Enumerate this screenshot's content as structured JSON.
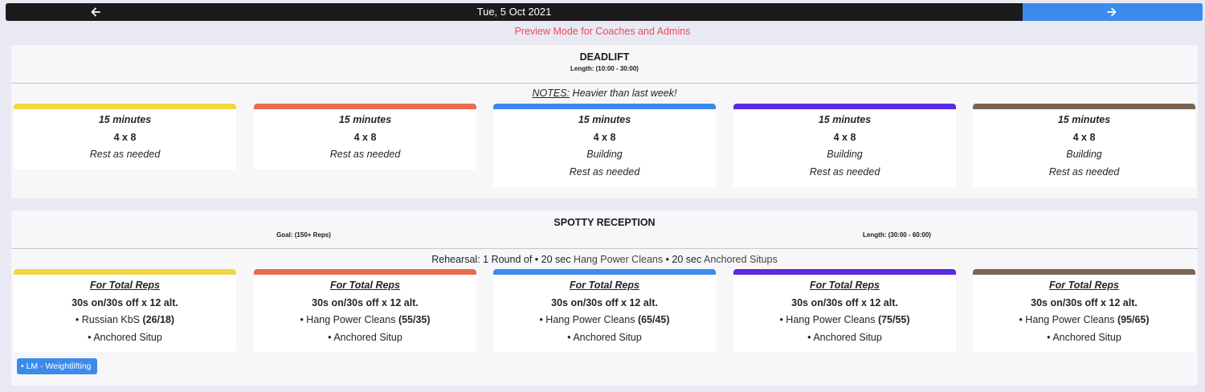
{
  "nav": {
    "date": "Tue, 5 Oct 2021",
    "prev_icon": "arrow-left-icon",
    "next_icon": "arrow-right-icon",
    "next_color": "#3b8bed"
  },
  "preview_text": "Preview Mode for Coaches and Admins",
  "colors": [
    "#f5d547",
    "#ec6a4e",
    "#3b8bed",
    "#5b2ae0",
    "#7a6554"
  ],
  "deadlift": {
    "title": "DEADLIFT",
    "length": "Length: (10:00 - 30:00)",
    "notes_label": "NOTES:",
    "notes_text": " Heavier than last week!",
    "boxes": [
      {
        "time": "15 minutes",
        "sets": "4 x 8",
        "l3": "Rest as needed",
        "l4": ""
      },
      {
        "time": "15 minutes",
        "sets": "4 x 8",
        "l3": "Rest as needed",
        "l4": ""
      },
      {
        "time": "15 minutes",
        "sets": "4 x 8",
        "l3": "Building",
        "l4": "Rest as needed"
      },
      {
        "time": "15 minutes",
        "sets": "4 x 8",
        "l3": "Building",
        "l4": "Rest as needed"
      },
      {
        "time": "15 minutes",
        "sets": "4 x 8",
        "l3": "Building",
        "l4": "Rest as needed"
      }
    ]
  },
  "spotty": {
    "title": "SPOTTY RECEPTION",
    "goal": "Goal: (150+ Reps)",
    "length": "Length: (30:00 - 60:00)",
    "rehearsal": {
      "p1": "Rehearsal: 1 Round of • 20 sec ",
      "m1": "Hang Power Cleans",
      "p2": " • 20 sec ",
      "m2": "Anchored Situps"
    },
    "boxes": [
      {
        "head": "For Total Reps",
        "scheme": "30s on/30s off x 12 alt.",
        "move": "• Russian KbS ",
        "load": "(26/18)",
        "move2": "• Anchored Situp"
      },
      {
        "head": "For Total Reps",
        "scheme": "30s on/30s off x 12 alt.",
        "move": "• Hang Power Cleans ",
        "load": "(55/35)",
        "move2": "• Anchored Situp"
      },
      {
        "head": "For Total Reps",
        "scheme": "30s on/30s off x 12 alt.",
        "move": "• Hang Power Cleans ",
        "load": "(65/45)",
        "move2": "• Anchored Situp"
      },
      {
        "head": "For Total Reps",
        "scheme": "30s on/30s off x 12 alt.",
        "move": "• Hang Power Cleans ",
        "load": "(75/55)",
        "move2": "• Anchored Situp"
      },
      {
        "head": "For Total Reps",
        "scheme": "30s on/30s off x 12 alt.",
        "move": "• Hang Power Cleans ",
        "load": "(95/65)",
        "move2": "• Anchored Situp"
      }
    ]
  },
  "tag": "• LM - Weightlifting"
}
